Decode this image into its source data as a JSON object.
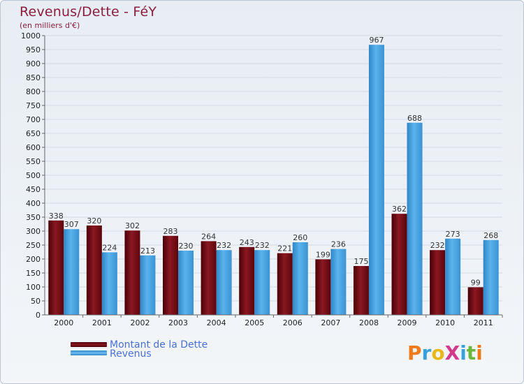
{
  "chart_data": {
    "type": "bar",
    "title": "Revenus/Dette - FéY",
    "subtitle": "(en milliers d'€)",
    "categories": [
      "2000",
      "2001",
      "2002",
      "2003",
      "2004",
      "2005",
      "2006",
      "2007",
      "2008",
      "2009",
      "2010",
      "2011"
    ],
    "series": [
      {
        "name": "Montant de la Dette",
        "color": "#7a0f17",
        "values": [
          338,
          320,
          302,
          283,
          264,
          243,
          221,
          199,
          175,
          362,
          232,
          99
        ]
      },
      {
        "name": "Revenus",
        "color": "#4aa3e0",
        "values": [
          307,
          224,
          213,
          230,
          232,
          232,
          260,
          236,
          967,
          688,
          273,
          268
        ]
      }
    ],
    "ylim": [
      0,
      1000
    ],
    "ytick_step": 50,
    "yticks": [
      "0",
      "50",
      "100",
      "150",
      "200",
      "250",
      "300",
      "350",
      "400",
      "450",
      "500",
      "550",
      "600",
      "650",
      "700",
      "750",
      "800",
      "850",
      "900",
      "950",
      "1000"
    ],
    "grid": true,
    "legend_position": "bottom-left",
    "xlabel": "",
    "ylabel": ""
  },
  "logo": {
    "text": "ProXiti"
  }
}
